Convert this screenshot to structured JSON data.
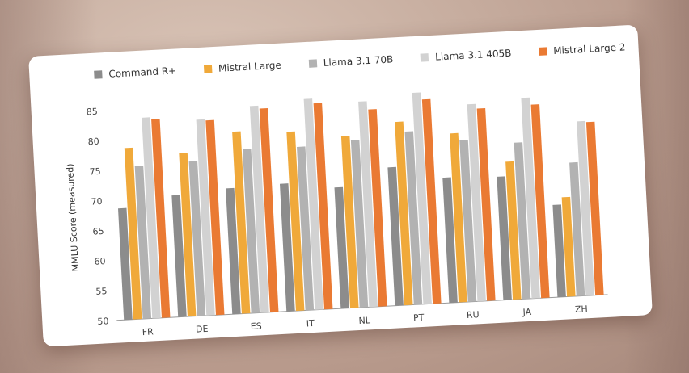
{
  "chart_data": {
    "type": "bar",
    "categories": [
      "FR",
      "DE",
      "ES",
      "IT",
      "NL",
      "PT",
      "RU",
      "JA",
      "ZH"
    ],
    "series": [
      {
        "name": "Command R+",
        "color": "#8c8c8c",
        "values": [
          68.6,
          70.3,
          71.0,
          71.3,
          70.2,
          73.1,
          70.9,
          70.6,
          65.4
        ]
      },
      {
        "name": "Mistral Large",
        "color": "#f0a93a",
        "values": [
          78.6,
          77.3,
          80.4,
          79.9,
          78.7,
          80.6,
          78.2,
          73.0,
          66.6
        ]
      },
      {
        "name": "Llama 3.1 70B",
        "color": "#b2b2b2",
        "values": [
          75.5,
          75.8,
          77.4,
          77.3,
          77.9,
          78.9,
          77.0,
          76.1,
          72.3
        ]
      },
      {
        "name": "Llama 3.1 405B",
        "color": "#d2d2d2",
        "values": [
          83.5,
          82.7,
          84.5,
          85.2,
          84.3,
          85.3,
          82.9,
          83.5,
          79.1
        ]
      },
      {
        "name": "Mistral Large 2",
        "color": "#ea7a33",
        "values": [
          83.2,
          82.5,
          84.0,
          84.4,
          82.9,
          84.1,
          82.1,
          82.3,
          78.9
        ]
      }
    ],
    "ylabel": "MMLU Score (measured)",
    "ylim": [
      50,
      85
    ],
    "yticks": [
      85,
      80,
      75,
      70,
      65,
      60,
      55,
      50
    ],
    "legend_position": "top",
    "grid": false
  }
}
